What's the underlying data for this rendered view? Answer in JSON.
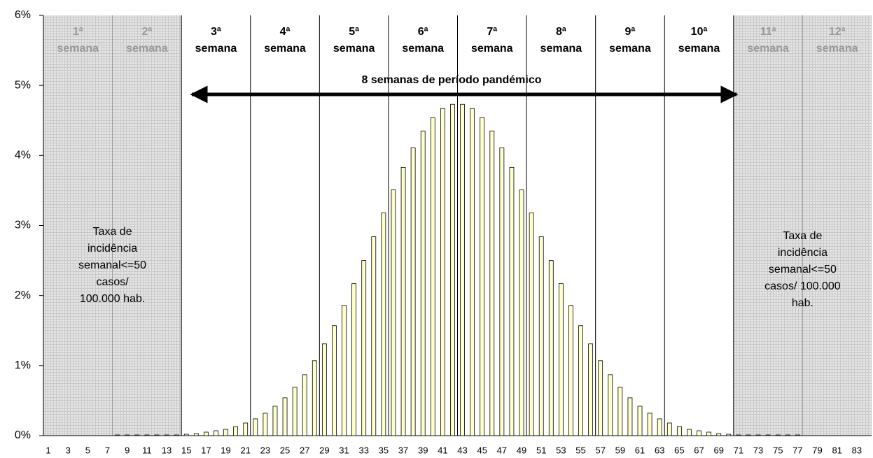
{
  "chart_data": {
    "type": "bar",
    "categories": [
      1,
      null,
      3,
      null,
      5,
      null,
      7,
      null,
      9,
      null,
      11,
      null,
      13,
      null,
      15,
      null,
      17,
      null,
      19,
      null,
      21,
      null,
      23,
      null,
      25,
      null,
      27,
      null,
      29,
      null,
      31,
      null,
      33,
      null,
      35,
      null,
      37,
      null,
      39,
      null,
      41,
      null,
      43,
      null,
      45,
      null,
      47,
      null,
      49,
      null,
      51,
      null,
      53,
      null,
      55,
      null,
      57,
      null,
      59,
      null,
      61,
      null,
      63,
      null,
      65,
      null,
      67,
      null,
      69,
      null,
      71,
      null,
      73,
      null,
      75,
      null,
      77,
      null,
      79,
      null,
      81,
      null,
      83,
      null
    ],
    "values": [
      0,
      0,
      0,
      0,
      0,
      0,
      0,
      0.01,
      0.01,
      0.01,
      0.01,
      0.01,
      0.01,
      0.01,
      0.02,
      0.03,
      0.05,
      0.07,
      0.09,
      0.13,
      0.18,
      0.24,
      0.32,
      0.42,
      0.54,
      0.69,
      0.87,
      1.07,
      1.31,
      1.57,
      1.86,
      2.17,
      2.5,
      2.84,
      3.18,
      3.51,
      3.83,
      4.11,
      4.35,
      4.54,
      4.67,
      4.73,
      4.73,
      4.67,
      4.54,
      4.35,
      4.11,
      3.83,
      3.51,
      3.18,
      2.84,
      2.5,
      2.17,
      1.86,
      1.57,
      1.31,
      1.07,
      0.87,
      0.69,
      0.54,
      0.42,
      0.32,
      0.24,
      0.18,
      0.13,
      0.09,
      0.07,
      0.05,
      0.03,
      0.02,
      0.01,
      0.01,
      0.01,
      0.01,
      0.01,
      0.01,
      0.01,
      0,
      0,
      0,
      0,
      0,
      0,
      0
    ],
    "color": "#ffffcc",
    "ylim": [
      0,
      6
    ],
    "yticks": [
      {
        "value": 0,
        "label": "0%"
      },
      {
        "value": 1,
        "label": "1%"
      },
      {
        "value": 2,
        "label": "2%"
      },
      {
        "value": 3,
        "label": "3%"
      },
      {
        "value": 4,
        "label": "4%"
      },
      {
        "value": 5,
        "label": "5%"
      },
      {
        "value": 6,
        "label": "6%"
      }
    ],
    "grid": false,
    "weeks": [
      [
        "1ª",
        "semana"
      ],
      [
        "2ª",
        "semana"
      ],
      [
        "3ª",
        "semana"
      ],
      [
        "4ª",
        "semana"
      ],
      [
        "5ª",
        "semana"
      ],
      [
        "6ª",
        "semana"
      ],
      [
        "7ª",
        "semana"
      ],
      [
        "8ª",
        "semana"
      ],
      [
        "9ª",
        "semana"
      ],
      [
        "10ª",
        "semana"
      ],
      [
        "11ª",
        "semana"
      ],
      [
        "12ª",
        "semana"
      ]
    ],
    "arrow_label": "8 semanas de período pandémico",
    "note_left": [
      "Taxa de",
      "incidência",
      "semanal<=50",
      "casos/",
      "100.000 hab."
    ],
    "note_right": [
      "Taxa de",
      "incidência",
      "semanal<=50",
      "casos/ 100.000",
      "hab."
    ]
  }
}
